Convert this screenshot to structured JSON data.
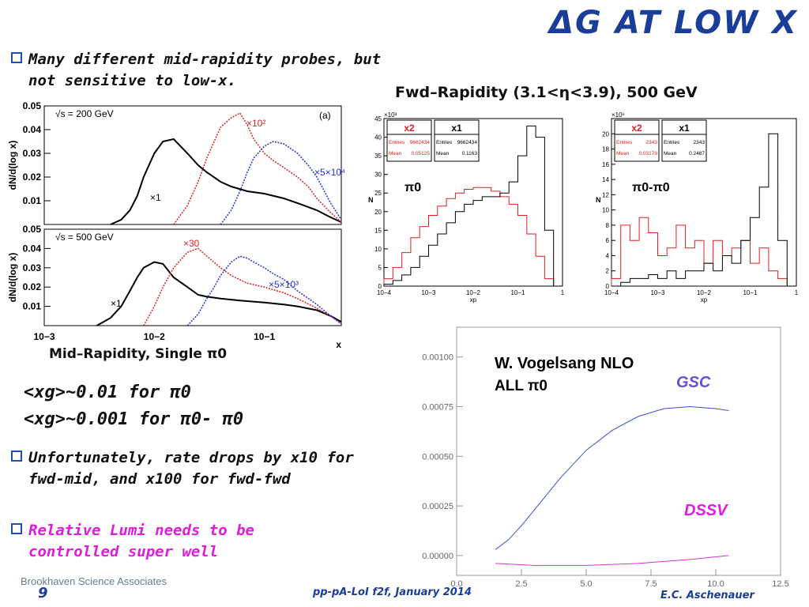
{
  "slide": {
    "title_symbol": "Δ",
    "title": "G at low x",
    "bullets": [
      "Many different mid-rapidity probes, but not sensitive to low-x.",
      "Unfortunately, rate drops by x10 for fwd-mid, and x100 for fwd-fwd",
      "Relative Lumi needs to be controlled super well"
    ],
    "fwd_label": "Fwd–Rapidity (3.1<η<3.9), 500 GeV",
    "mid_label": "Mid–Rapidity, Single π0",
    "xg1": "<xg>~0.01 for π0",
    "xg2": "<xg>~0.001 for π0- π0",
    "footer_left": "Brookhaven Science Associates",
    "page_number": "9",
    "footer_mid": "pp-pA-LoI f2f, January 2014",
    "footer_right": "E.C. Aschenauer"
  },
  "colors": {
    "accent": "#1a3d9a",
    "magenta": "#e01be0",
    "red": "#e02020",
    "blue": "#2030e0"
  },
  "chart_data": [
    {
      "type": "line",
      "panel": "mid-rapidity 200 GeV",
      "title": "√s = 200 GeV",
      "tag": "(a)",
      "ylabel": "dN/d(log x)",
      "xlabel": "x",
      "xscale": "log",
      "xlim": [
        0.001,
        0.5
      ],
      "ylim": [
        0,
        0.05
      ],
      "yticks": [
        "0.05",
        "0.04",
        "0.03",
        "0.02",
        "0.01"
      ],
      "xticks": [
        "10−3",
        "10−2",
        "10−1"
      ],
      "series": [
        {
          "name": "×1",
          "color": "#000000",
          "x": [
            0.004,
            0.005,
            0.006,
            0.007,
            0.008,
            0.01,
            0.012,
            0.015,
            0.02,
            0.025,
            0.03,
            0.04,
            0.05,
            0.07,
            0.1,
            0.15,
            0.2,
            0.3,
            0.4,
            0.5
          ],
          "y": [
            0,
            0.002,
            0.006,
            0.012,
            0.02,
            0.03,
            0.035,
            0.036,
            0.03,
            0.025,
            0.022,
            0.018,
            0.016,
            0.014,
            0.013,
            0.011,
            0.009,
            0.006,
            0.003,
            0.001
          ]
        },
        {
          "name": "×10²",
          "color": "#e02020",
          "x": [
            0.015,
            0.02,
            0.025,
            0.03,
            0.035,
            0.04,
            0.05,
            0.06,
            0.07,
            0.08,
            0.1,
            0.12,
            0.15,
            0.2,
            0.25,
            0.3,
            0.4,
            0.5
          ],
          "y": [
            0,
            0.008,
            0.018,
            0.028,
            0.035,
            0.041,
            0.045,
            0.047,
            0.042,
            0.036,
            0.03,
            0.027,
            0.024,
            0.02,
            0.016,
            0.011,
            0.005,
            0.001
          ]
        },
        {
          "name": "×5×10⁴",
          "color": "#2030e0",
          "x": [
            0.04,
            0.05,
            0.06,
            0.07,
            0.08,
            0.1,
            0.12,
            0.15,
            0.2,
            0.25,
            0.3,
            0.4,
            0.5
          ],
          "y": [
            0,
            0.006,
            0.014,
            0.022,
            0.028,
            0.033,
            0.035,
            0.034,
            0.03,
            0.025,
            0.02,
            0.009,
            0.002
          ]
        }
      ]
    },
    {
      "type": "line",
      "panel": "mid-rapidity 500 GeV",
      "title": "√s = 500 GeV",
      "ylabel": "dN/d(log x)",
      "xlabel": "x",
      "xscale": "log",
      "xlim": [
        0.001,
        0.5
      ],
      "ylim": [
        0,
        0.05
      ],
      "yticks": [
        "0.05",
        "0.04",
        "0.03",
        "0.02",
        "0.01"
      ],
      "series": [
        {
          "name": "×1",
          "color": "#000000",
          "x": [
            0.003,
            0.004,
            0.005,
            0.006,
            0.007,
            0.008,
            0.01,
            0.012,
            0.015,
            0.02,
            0.025,
            0.03,
            0.04,
            0.06,
            0.1,
            0.15,
            0.2,
            0.3,
            0.4,
            0.5
          ],
          "y": [
            0,
            0.004,
            0.01,
            0.018,
            0.025,
            0.03,
            0.033,
            0.032,
            0.025,
            0.02,
            0.016,
            0.015,
            0.014,
            0.013,
            0.012,
            0.011,
            0.01,
            0.008,
            0.005,
            0.002
          ]
        },
        {
          "name": "×30",
          "color": "#e02020",
          "x": [
            0.008,
            0.01,
            0.012,
            0.015,
            0.02,
            0.025,
            0.03,
            0.04,
            0.05,
            0.07,
            0.1,
            0.15,
            0.2,
            0.3,
            0.4,
            0.5
          ],
          "y": [
            0,
            0.01,
            0.02,
            0.03,
            0.038,
            0.04,
            0.036,
            0.03,
            0.026,
            0.022,
            0.02,
            0.017,
            0.014,
            0.009,
            0.005,
            0.001
          ]
        },
        {
          "name": "×5×10³",
          "color": "#2030e0",
          "x": [
            0.02,
            0.025,
            0.03,
            0.035,
            0.04,
            0.05,
            0.06,
            0.07,
            0.08,
            0.1,
            0.12,
            0.15,
            0.2,
            0.3,
            0.4,
            0.5
          ],
          "y": [
            0,
            0.006,
            0.014,
            0.02,
            0.026,
            0.033,
            0.036,
            0.035,
            0.033,
            0.03,
            0.027,
            0.024,
            0.018,
            0.011,
            0.005,
            0.001
          ]
        }
      ]
    },
    {
      "type": "bar",
      "panel": "fwd-rapidity π0",
      "label": "π0",
      "ylabel": "N",
      "xlabel": "xp",
      "xscale": "log",
      "xlim": [
        0.0001,
        1
      ],
      "ylim": [
        0,
        45
      ],
      "yexp": "×10³",
      "yticks": [
        0,
        5,
        10,
        15,
        20,
        25,
        30,
        35,
        40,
        45
      ],
      "xticks": [
        "10−4",
        "10−3",
        "10−2",
        "10−1",
        "1"
      ],
      "stats": [
        {
          "name": "x2",
          "entries": "9662434",
          "mean": "0.05125"
        },
        {
          "name": "x1",
          "entries": "9662434",
          "mean": "0.1163"
        }
      ],
      "series": [
        {
          "name": "x2",
          "color": "#e02020",
          "x": [
            -3.9,
            -3.7,
            -3.5,
            -3.3,
            -3.1,
            -2.9,
            -2.7,
            -2.5,
            -2.3,
            -2.1,
            -1.9,
            -1.7,
            -1.5,
            -1.3,
            -1.1,
            -0.9,
            -0.7,
            -0.5,
            -0.3
          ],
          "y": [
            2,
            5,
            9,
            13,
            16,
            19,
            21.5,
            23.5,
            25,
            26,
            26.5,
            26.5,
            25.5,
            24,
            22,
            19,
            14,
            8,
            2
          ]
        },
        {
          "name": "x1",
          "color": "#000000",
          "x": [
            -3.9,
            -3.7,
            -3.5,
            -3.3,
            -3.1,
            -2.9,
            -2.7,
            -2.5,
            -2.3,
            -2.1,
            -1.9,
            -1.7,
            -1.5,
            -1.3,
            -1.1,
            -0.9,
            -0.7,
            -0.5,
            -0.3
          ],
          "y": [
            0.5,
            1.5,
            3,
            5,
            8,
            11,
            14,
            17,
            20,
            22,
            23,
            24,
            24,
            25,
            28,
            35,
            43,
            40,
            15
          ]
        }
      ]
    },
    {
      "type": "bar",
      "panel": "fwd-rapidity π0-π0",
      "label": "π0-π0",
      "ylabel": "N",
      "xlabel": "xp",
      "xscale": "log",
      "xlim": [
        0.0001,
        1
      ],
      "ylim": [
        0,
        22
      ],
      "yexp": "×10⁶",
      "yticks": [
        0,
        2,
        4,
        6,
        8,
        10,
        12,
        14,
        16,
        18,
        20
      ],
      "xticks": [
        "10−4",
        "10−3",
        "10−2",
        "10−1",
        "1"
      ],
      "stats": [
        {
          "name": "x2",
          "entries": "2343",
          "mean": "0.03179"
        },
        {
          "name": "x1",
          "entries": "2343",
          "mean": "0.2487"
        }
      ],
      "series": [
        {
          "name": "x2",
          "color": "#e02020",
          "x": [
            -3.9,
            -3.7,
            -3.5,
            -3.3,
            -3.1,
            -2.9,
            -2.7,
            -2.5,
            -2.3,
            -2.1,
            -1.9,
            -1.7,
            -1.5,
            -1.3,
            -1.1,
            -0.9,
            -0.7,
            -0.5,
            -0.3
          ],
          "y": [
            1,
            8,
            6,
            9,
            7,
            4,
            5,
            8,
            5,
            6,
            3,
            6,
            4,
            5,
            6,
            3,
            5,
            2,
            1
          ]
        },
        {
          "name": "x1",
          "color": "#000000",
          "x": [
            -3.9,
            -3.7,
            -3.5,
            -3.3,
            -3.1,
            -2.9,
            -2.7,
            -2.5,
            -2.3,
            -2.1,
            -1.9,
            -1.7,
            -1.5,
            -1.3,
            -1.1,
            -0.9,
            -0.7,
            -0.5,
            -0.3
          ],
          "y": [
            0,
            0.5,
            1,
            1,
            1.5,
            1,
            2,
            1,
            2,
            2,
            3,
            2,
            4,
            3,
            6,
            9,
            13,
            20,
            6
          ]
        }
      ]
    },
    {
      "type": "line",
      "panel": "ALL prediction",
      "label1": "W. Vogelsang NLO",
      "label2": "ALL π0",
      "xlim": [
        0,
        12.5
      ],
      "ylim": [
        -0.0001,
        0.00115
      ],
      "xticks": [
        "0.0",
        "2.5",
        "5.0",
        "7.5",
        "10.0",
        "12.5"
      ],
      "yticks": [
        "0.00100",
        "0.00075",
        "0.00050",
        "0.00025",
        "0.00000"
      ],
      "series": [
        {
          "name": "GSC",
          "color": "#3a4fd8",
          "x": [
            1.5,
            2,
            2.5,
            3,
            4,
            5,
            6,
            7,
            8,
            9,
            10,
            10.5
          ],
          "y": [
            3e-05,
            8e-05,
            0.00015,
            0.00023,
            0.00039,
            0.00053,
            0.00063,
            0.0007,
            0.00074,
            0.00075,
            0.00074,
            0.00073
          ]
        },
        {
          "name": "DSSV",
          "color": "#d62fd6",
          "x": [
            1.5,
            3,
            5,
            7,
            9,
            10.5
          ],
          "y": [
            -4e-05,
            -5e-05,
            -5e-05,
            -4e-05,
            -2e-05,
            0
          ]
        }
      ]
    }
  ]
}
